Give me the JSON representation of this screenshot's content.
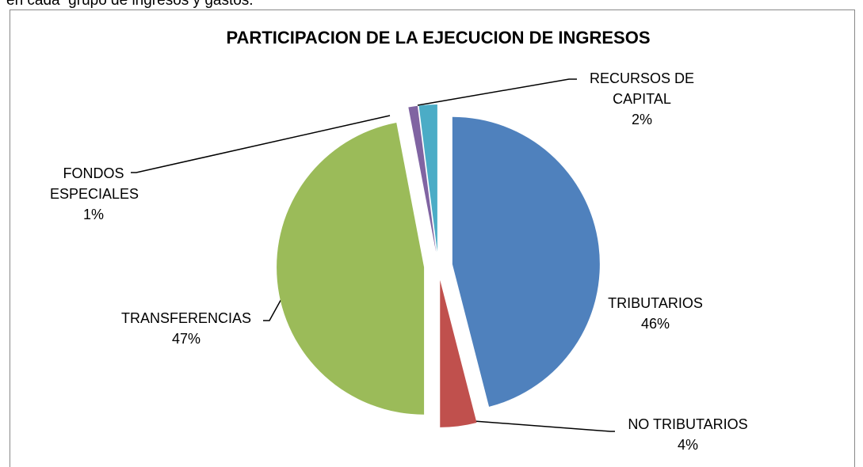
{
  "page_text": "en cada  grupo de ingresos y gastos.",
  "chart_data": {
    "type": "pie",
    "title": "PARTICIPACION DE LA EJECUCION DE INGRESOS",
    "categories": [
      "TRIBUTARIOS",
      "NO TRIBUTARIOS",
      "TRANSFERENCIAS",
      "FONDOS ESPECIALES",
      "RECURSOS DE CAPITAL"
    ],
    "values": [
      46,
      4,
      47,
      1,
      2
    ],
    "value_labels": [
      "46%",
      "4%",
      "47%",
      "1%",
      "2%"
    ],
    "colors": [
      "#4f81bd",
      "#c0504d",
      "#9bbb59",
      "#8064a2",
      "#4bacc6"
    ]
  }
}
